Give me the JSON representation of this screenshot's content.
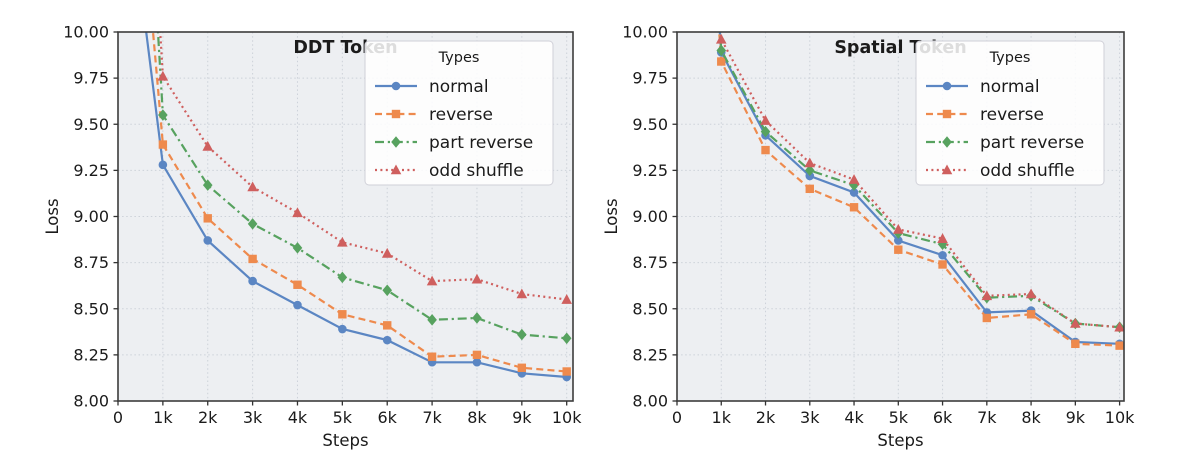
{
  "figure": {
    "background": "#ffffff",
    "plot_background": "#edeff2",
    "grid_color": "#c9ced6",
    "spine_color": "#3c3c3c",
    "text_color": "#1b1b1b"
  },
  "chart_data": [
    {
      "type": "line",
      "title": "DDT Token",
      "xlabel": "Steps",
      "ylabel": "Loss",
      "xlim": [
        0,
        10.15
      ],
      "ylim": [
        8.0,
        10.0
      ],
      "grid": true,
      "x_units": "thousands of steps",
      "x": [
        1,
        2,
        3,
        4,
        5,
        6,
        7,
        8,
        9,
        10
      ],
      "xticks": {
        "values": [
          0,
          1,
          2,
          3,
          4,
          5,
          6,
          7,
          8,
          9,
          10
        ],
        "labels": [
          "0",
          "1k",
          "2k",
          "3k",
          "4k",
          "5k",
          "6k",
          "7k",
          "8k",
          "9k",
          "10k"
        ]
      },
      "yticks": {
        "values": [
          8.0,
          8.25,
          8.5,
          8.75,
          9.0,
          9.25,
          9.5,
          9.75,
          10.0
        ],
        "labels": [
          "8.00",
          "8.25",
          "8.50",
          "8.75",
          "9.00",
          "9.25",
          "9.50",
          "9.75",
          "10.00"
        ]
      },
      "legend": {
        "title": "Types",
        "position": "upper-right"
      },
      "series": [
        {
          "name": "normal",
          "color": "#5b86c3",
          "line_style": "solid",
          "marker": "circle",
          "values": [
            9.28,
            8.87,
            8.65,
            8.52,
            8.39,
            8.33,
            8.21,
            8.21,
            8.15,
            8.13
          ],
          "entry_point": {
            "x": 0.5,
            "y": 10.25
          }
        },
        {
          "name": "reverse",
          "color": "#ee8a4d",
          "line_style": "dashed",
          "marker": "square",
          "values": [
            9.39,
            8.99,
            8.77,
            8.63,
            8.47,
            8.41,
            8.24,
            8.25,
            8.18,
            8.16
          ],
          "entry_point": {
            "x": 0.5,
            "y": 10.78
          }
        },
        {
          "name": "part reverse",
          "color": "#57a25f",
          "line_style": "dashdot",
          "marker": "diamond",
          "values": [
            9.55,
            9.17,
            8.96,
            8.83,
            8.67,
            8.6,
            8.44,
            8.45,
            8.36,
            8.34
          ],
          "entry_point": {
            "x": 0.5,
            "y": 11.6
          }
        },
        {
          "name": "odd shuffle",
          "color": "#cf5f5e",
          "line_style": "dotted",
          "marker": "triangle",
          "values": [
            9.76,
            9.38,
            9.16,
            9.02,
            8.86,
            8.8,
            8.65,
            8.66,
            8.58,
            8.55
          ],
          "entry_point": {
            "x": 0.5,
            "y": 11.76
          }
        }
      ]
    },
    {
      "type": "line",
      "title": "Spatial Token",
      "xlabel": "Steps",
      "ylabel": "Loss",
      "xlim": [
        0,
        10.1
      ],
      "ylim": [
        8.0,
        10.0
      ],
      "grid": true,
      "x_units": "thousands of steps",
      "x": [
        1,
        2,
        3,
        4,
        5,
        6,
        7,
        8,
        9,
        10
      ],
      "xticks": {
        "values": [
          0,
          1,
          2,
          3,
          4,
          5,
          6,
          7,
          8,
          9,
          10
        ],
        "labels": [
          "0",
          "1k",
          "2k",
          "3k",
          "4k",
          "5k",
          "6k",
          "7k",
          "8k",
          "9k",
          "10k"
        ]
      },
      "yticks": {
        "values": [
          8.0,
          8.25,
          8.5,
          8.75,
          9.0,
          9.25,
          9.5,
          9.75,
          10.0
        ],
        "labels": [
          "8.00",
          "8.25",
          "8.50",
          "8.75",
          "9.00",
          "9.25",
          "9.50",
          "9.75",
          "10.00"
        ]
      },
      "legend": {
        "title": "Types",
        "position": "upper-right"
      },
      "series": [
        {
          "name": "normal",
          "color": "#5b86c3",
          "line_style": "solid",
          "marker": "circle",
          "values": [
            9.89,
            9.44,
            9.22,
            9.13,
            8.87,
            8.79,
            8.48,
            8.49,
            8.32,
            8.31
          ],
          "entry_point": {
            "x": 0.5,
            "y": 11.5
          }
        },
        {
          "name": "reverse",
          "color": "#ee8a4d",
          "line_style": "dashed",
          "marker": "square",
          "values": [
            9.84,
            9.36,
            9.15,
            9.05,
            8.82,
            8.74,
            8.45,
            8.47,
            8.31,
            8.3
          ],
          "entry_point": {
            "x": 0.5,
            "y": 11.5
          }
        },
        {
          "name": "part reverse",
          "color": "#57a25f",
          "line_style": "dashdot",
          "marker": "diamond",
          "values": [
            9.9,
            9.46,
            9.25,
            9.17,
            8.91,
            8.85,
            8.56,
            8.57,
            8.42,
            8.4
          ],
          "entry_point": {
            "x": 0.5,
            "y": 11.5
          }
        },
        {
          "name": "odd shuffle",
          "color": "#cf5f5e",
          "line_style": "dotted",
          "marker": "triangle",
          "values": [
            9.96,
            9.52,
            9.29,
            9.2,
            8.93,
            8.88,
            8.57,
            8.58,
            8.42,
            8.4
          ],
          "entry_point": {
            "x": 0.5,
            "y": 11.5
          }
        }
      ]
    }
  ]
}
